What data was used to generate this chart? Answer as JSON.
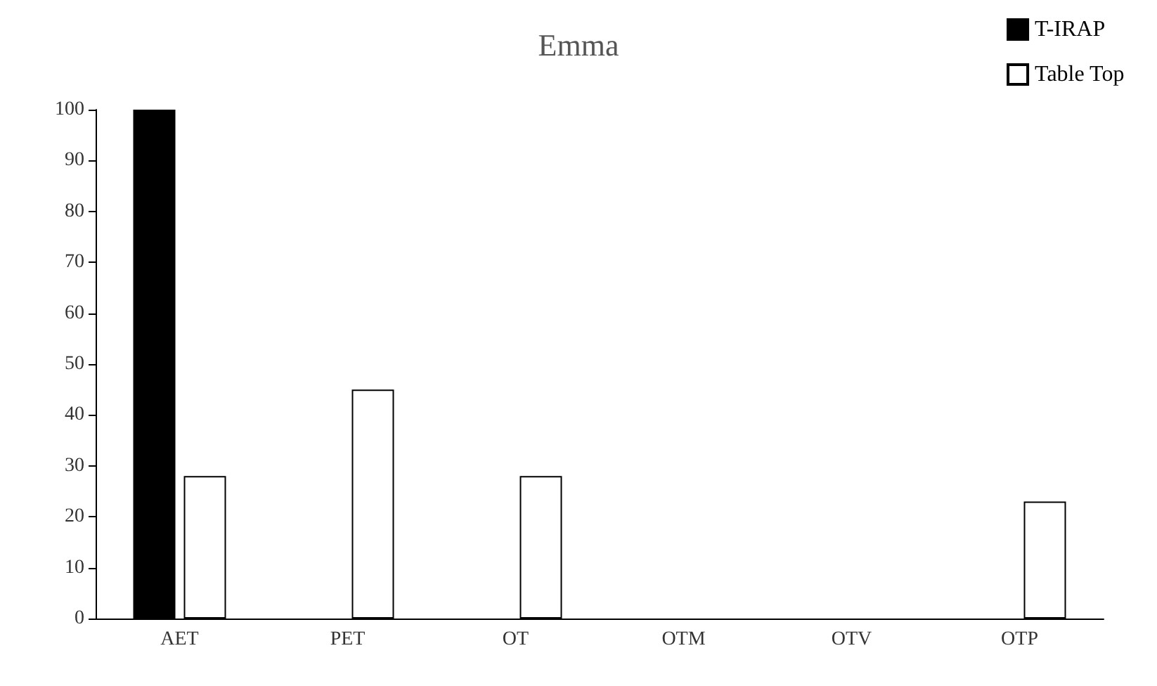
{
  "chart_data": {
    "type": "bar",
    "title": "Emma",
    "categories": [
      "AET",
      "PET",
      "OT",
      "OTM",
      "OTV",
      "OTP"
    ],
    "series": [
      {
        "name": "T-IRAP",
        "color": "#000000",
        "values": [
          100,
          0,
          0,
          0,
          0,
          0
        ]
      },
      {
        "name": "Table Top",
        "color": "#ffffff",
        "values": [
          28,
          45,
          28,
          0,
          0,
          23
        ]
      }
    ],
    "ylim": [
      0,
      100
    ],
    "yticks": [
      0,
      10,
      20,
      30,
      40,
      50,
      60,
      70,
      80,
      90,
      100
    ],
    "grid": false,
    "legend": "top right"
  }
}
